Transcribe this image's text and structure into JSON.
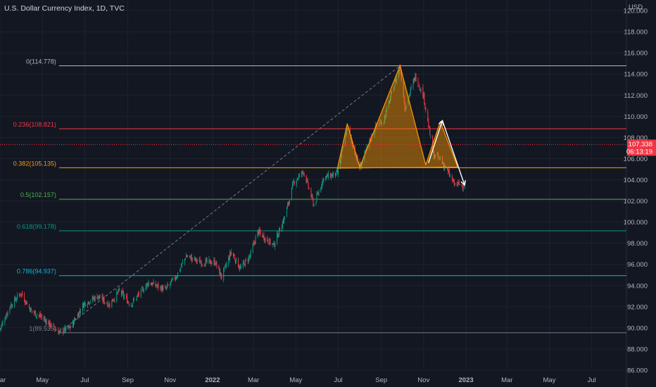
{
  "header": {
    "title": "U.S. Dollar Currency Index, 1D, TVC"
  },
  "chart_data": {
    "type": "candlestick",
    "title": "U.S. Dollar Currency Index, 1D, TVC",
    "currency": "USD",
    "ylim": [
      86.0,
      121.0
    ],
    "y_ticks": [
      "86.000",
      "88.000",
      "90.000",
      "92.000",
      "94.000",
      "96.000",
      "98.000",
      "100.000",
      "102.000",
      "104.000",
      "106.000",
      "108.000",
      "110.000",
      "112.000",
      "114.000",
      "116.000",
      "118.000",
      "120.000"
    ],
    "x_range": [
      "2021-03-01",
      "2023-08-20"
    ],
    "x_ticks": [
      {
        "date": "2021-03-01",
        "label": "Mar",
        "bold": false
      },
      {
        "date": "2021-05-01",
        "label": "May",
        "bold": false
      },
      {
        "date": "2021-07-01",
        "label": "Jul",
        "bold": false
      },
      {
        "date": "2021-09-01",
        "label": "Sep",
        "bold": false
      },
      {
        "date": "2021-11-01",
        "label": "Nov",
        "bold": false
      },
      {
        "date": "2022-01-01",
        "label": "2022",
        "bold": true
      },
      {
        "date": "2022-03-01",
        "label": "Mar",
        "bold": false
      },
      {
        "date": "2022-05-01",
        "label": "May",
        "bold": false
      },
      {
        "date": "2022-07-01",
        "label": "Jul",
        "bold": false
      },
      {
        "date": "2022-09-01",
        "label": "Sep",
        "bold": false
      },
      {
        "date": "2022-11-01",
        "label": "Nov",
        "bold": false
      },
      {
        "date": "2023-01-01",
        "label": "2023",
        "bold": true
      },
      {
        "date": "2023-03-01",
        "label": "Mar",
        "bold": false
      },
      {
        "date": "2023-05-01",
        "label": "May",
        "bold": false
      },
      {
        "date": "2023-07-01",
        "label": "Jul",
        "bold": false
      }
    ],
    "price_path": [
      [
        "2021-03-01",
        89.9
      ],
      [
        "2021-03-15",
        92.0
      ],
      [
        "2021-03-31",
        93.3
      ],
      [
        "2021-04-15",
        91.6
      ],
      [
        "2021-04-30",
        91.0
      ],
      [
        "2021-05-25",
        89.6
      ],
      [
        "2021-06-10",
        90.0
      ],
      [
        "2021-06-30",
        92.3
      ],
      [
        "2021-07-20",
        93.0
      ],
      [
        "2021-08-05",
        92.2
      ],
      [
        "2021-08-20",
        93.5
      ],
      [
        "2021-09-05",
        92.2
      ],
      [
        "2021-10-01",
        94.3
      ],
      [
        "2021-10-25",
        93.6
      ],
      [
        "2021-11-10",
        94.9
      ],
      [
        "2021-11-24",
        96.8
      ],
      [
        "2021-12-15",
        96.2
      ],
      [
        "2022-01-05",
        96.2
      ],
      [
        "2022-01-14",
        94.8
      ],
      [
        "2022-01-28",
        97.2
      ],
      [
        "2022-02-10",
        95.6
      ],
      [
        "2022-02-24",
        96.8
      ],
      [
        "2022-03-07",
        99.1
      ],
      [
        "2022-03-30",
        97.8
      ],
      [
        "2022-04-15",
        100.5
      ],
      [
        "2022-04-28",
        103.8
      ],
      [
        "2022-05-12",
        104.8
      ],
      [
        "2022-05-27",
        101.6
      ],
      [
        "2022-06-10",
        104.2
      ],
      [
        "2022-06-30",
        104.6
      ],
      [
        "2022-07-14",
        109.0
      ],
      [
        "2022-08-01",
        105.1
      ],
      [
        "2022-08-22",
        108.9
      ],
      [
        "2022-09-05",
        109.7
      ],
      [
        "2022-09-28",
        114.8
      ],
      [
        "2022-10-05",
        110.8
      ],
      [
        "2022-10-20",
        113.8
      ],
      [
        "2022-11-01",
        111.9
      ],
      [
        "2022-11-15",
        106.3
      ],
      [
        "2022-11-25",
        106.0
      ],
      [
        "2022-12-05",
        104.8
      ],
      [
        "2022-12-15",
        103.6
      ],
      [
        "2022-12-30",
        103.5
      ]
    ],
    "last_price": {
      "value": 107.338,
      "label": "107.338",
      "countdown": "06:13:19"
    },
    "fibonacci": [
      {
        "ratio": "0",
        "price": 114.778,
        "label": "0(114.778)",
        "color": "#b2b5be"
      },
      {
        "ratio": "0.236",
        "price": 108.821,
        "label": "0.236(108.821)",
        "color": "#f23645"
      },
      {
        "ratio": "0.382",
        "price": 105.135,
        "label": "0.382(105.135)",
        "color": "#ff9800"
      },
      {
        "ratio": "0.5",
        "price": 102.157,
        "label": "0.5(102.157)",
        "color": "#4caf50"
      },
      {
        "ratio": "0.618",
        "price": 99.178,
        "label": "0.618(99.178)",
        "color": "#089981"
      },
      {
        "ratio": "0.786",
        "price": 94.937,
        "label": "0.786(94.937)",
        "color": "#00bcd4"
      },
      {
        "ratio": "1",
        "price": 89.535,
        "label": "1(89.535)",
        "color": "#787b86"
      }
    ],
    "fib_anchor": {
      "start": [
        "2021-05-25",
        89.535
      ],
      "end": [
        "2022-09-28",
        114.778
      ],
      "fib_start_date": "2021-05-25",
      "fib_end_date": "2023-08-20"
    },
    "pattern": {
      "name": "head and shoulders",
      "points": [
        [
          "2022-06-30",
          105.1
        ],
        [
          "2022-07-14",
          109.3
        ],
        [
          "2022-08-01",
          105.2
        ],
        [
          "2022-09-28",
          114.8
        ],
        [
          "2022-11-04",
          105.4
        ],
        [
          "2022-11-25",
          109.5
        ],
        [
          "2022-12-20",
          105.2
        ]
      ],
      "fill": "rgba(255,152,0,0.45)",
      "stroke": "#ff9800"
    },
    "projection": {
      "up": [
        [
          "2022-11-08",
          105.6
        ],
        [
          "2022-11-28",
          109.6
        ]
      ],
      "down": [
        [
          "2022-11-28",
          109.6
        ],
        [
          "2022-12-30",
          103.5
        ]
      ],
      "color": "#ffffff"
    }
  }
}
